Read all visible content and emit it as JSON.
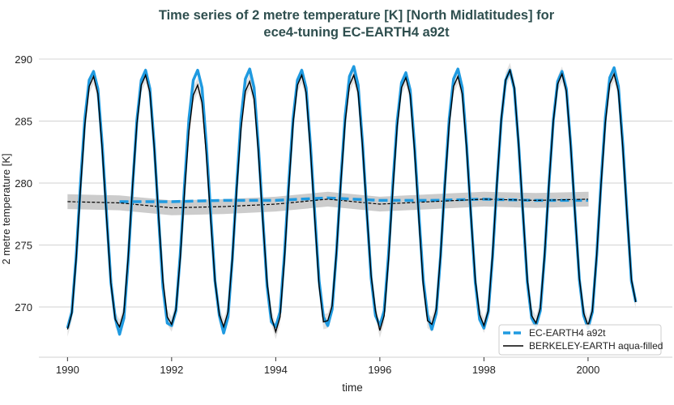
{
  "chart_data": {
    "type": "line",
    "title": "Time series of 2 metre temperature [K] [North Midlatitudes] for",
    "title_line2": "ece4-tuning EC-EARTH4 a92t",
    "xlabel": "time",
    "ylabel": "2 metre temperature [K]",
    "xlim": [
      1989.45,
      2001.62
    ],
    "ylim": [
      265.95,
      290.65
    ],
    "xticks": [
      1990,
      1992,
      1994,
      1996,
      1998,
      2000
    ],
    "yticks": [
      270,
      275,
      280,
      285,
      290
    ],
    "grid": "horizontal",
    "legend_position": "lower-right",
    "colors": {
      "model": "#1f9ae0",
      "obs": "#000000",
      "band": "#cccccc",
      "title": "#2f4f4f",
      "grid": "#d9d9d9"
    },
    "monthly_start": 1990,
    "series": [
      {
        "name": "EC-EARTH4 a92t",
        "style": "dashed-thick",
        "monthly": [
          268.3,
          269.6,
          274.1,
          280.0,
          285.2,
          288.3,
          289.0,
          287.6,
          283.1,
          277.5,
          272.0,
          269.1,
          267.8,
          269.1,
          273.8,
          279.7,
          285.1,
          288.3,
          289.1,
          287.6,
          283.0,
          277.2,
          271.6,
          268.7,
          268.5,
          269.7,
          274.3,
          280.0,
          285.2,
          288.3,
          289.1,
          287.7,
          283.1,
          277.6,
          272.1,
          269.3,
          267.9,
          269.2,
          273.9,
          279.8,
          285.2,
          288.4,
          289.2,
          287.7,
          283.0,
          277.3,
          271.7,
          268.8,
          268.4,
          269.6,
          274.2,
          280.0,
          285.2,
          288.3,
          289.1,
          287.7,
          283.1,
          277.5,
          272.1,
          269.2,
          268.5,
          269.8,
          274.4,
          280.2,
          285.4,
          288.6,
          289.4,
          287.9,
          283.3,
          277.7,
          272.3,
          269.3,
          268.5,
          269.7,
          274.2,
          279.9,
          285.0,
          288.1,
          288.9,
          287.5,
          283.0,
          277.5,
          272.2,
          269.3,
          268.2,
          269.5,
          274.1,
          280.0,
          285.2,
          288.4,
          289.2,
          287.7,
          283.1,
          277.4,
          272.0,
          269.0,
          268.3,
          269.6,
          274.1,
          280.0,
          285.1,
          288.3,
          289.1,
          287.6,
          283.1,
          277.5,
          272.0,
          269.1,
          268.5,
          269.7,
          274.2,
          280.0,
          285.1,
          288.2,
          289.0,
          287.6,
          283.1,
          277.5,
          272.2,
          269.3,
          268.3,
          269.6,
          274.2,
          280.1,
          285.3,
          288.5,
          289.3,
          287.8,
          283.2,
          277.5,
          272.1,
          270.4
        ],
        "annual_mean_x": [
          1991,
          1992,
          1993,
          1994,
          1995,
          1996,
          1997,
          1998,
          1999,
          2000
        ],
        "annual_mean": [
          278.5,
          278.5,
          278.6,
          278.6,
          278.8,
          278.6,
          278.6,
          278.7,
          278.6,
          278.6
        ]
      },
      {
        "name": "BERKELEY-EARTH aqua-filled",
        "style": "solid-thin",
        "monthly": [
          268.2,
          269.5,
          273.9,
          279.6,
          284.7,
          287.8,
          288.6,
          287.2,
          282.7,
          277.2,
          271.9,
          269.0,
          268.4,
          269.6,
          274.1,
          279.8,
          284.8,
          287.9,
          288.7,
          287.3,
          282.8,
          277.3,
          272.1,
          269.2,
          268.6,
          269.8,
          274.0,
          279.4,
          284.2,
          287.1,
          287.9,
          286.5,
          282.3,
          277.1,
          272.1,
          269.4,
          268.4,
          269.6,
          273.9,
          279.5,
          284.4,
          287.4,
          288.2,
          286.8,
          282.5,
          277.1,
          272.0,
          269.2,
          268.0,
          269.2,
          273.8,
          279.6,
          284.8,
          287.9,
          288.7,
          287.3,
          282.7,
          277.1,
          271.7,
          268.8,
          268.9,
          270.1,
          274.4,
          280.0,
          284.9,
          287.9,
          288.7,
          287.3,
          283.0,
          277.6,
          272.5,
          269.7,
          268.1,
          269.3,
          273.8,
          279.5,
          284.6,
          287.7,
          288.5,
          287.1,
          282.6,
          277.1,
          271.8,
          268.9,
          268.6,
          269.8,
          274.2,
          279.8,
          284.8,
          287.8,
          288.6,
          287.2,
          282.8,
          277.4,
          272.2,
          269.4,
          268.5,
          269.7,
          274.3,
          280.0,
          285.2,
          288.3,
          289.1,
          287.7,
          283.1,
          277.6,
          272.2,
          269.3,
          268.7,
          269.9,
          274.3,
          280.0,
          285.0,
          288.0,
          288.8,
          287.4,
          283.0,
          277.5,
          272.3,
          269.5,
          268.5,
          269.7,
          274.2,
          279.9,
          284.9,
          288.0,
          288.8,
          287.4,
          282.9,
          277.4,
          272.2,
          270.4
        ],
        "annual_mean_x": [
          1990,
          1991,
          1992,
          1993,
          1994,
          1995,
          1996,
          1997,
          1998,
          1999,
          2000
        ],
        "annual_mean": [
          278.5,
          278.4,
          278.0,
          278.1,
          278.3,
          278.7,
          278.3,
          278.5,
          278.7,
          278.6,
          278.7
        ],
        "band_halfwidth": 0.6
      }
    ]
  }
}
